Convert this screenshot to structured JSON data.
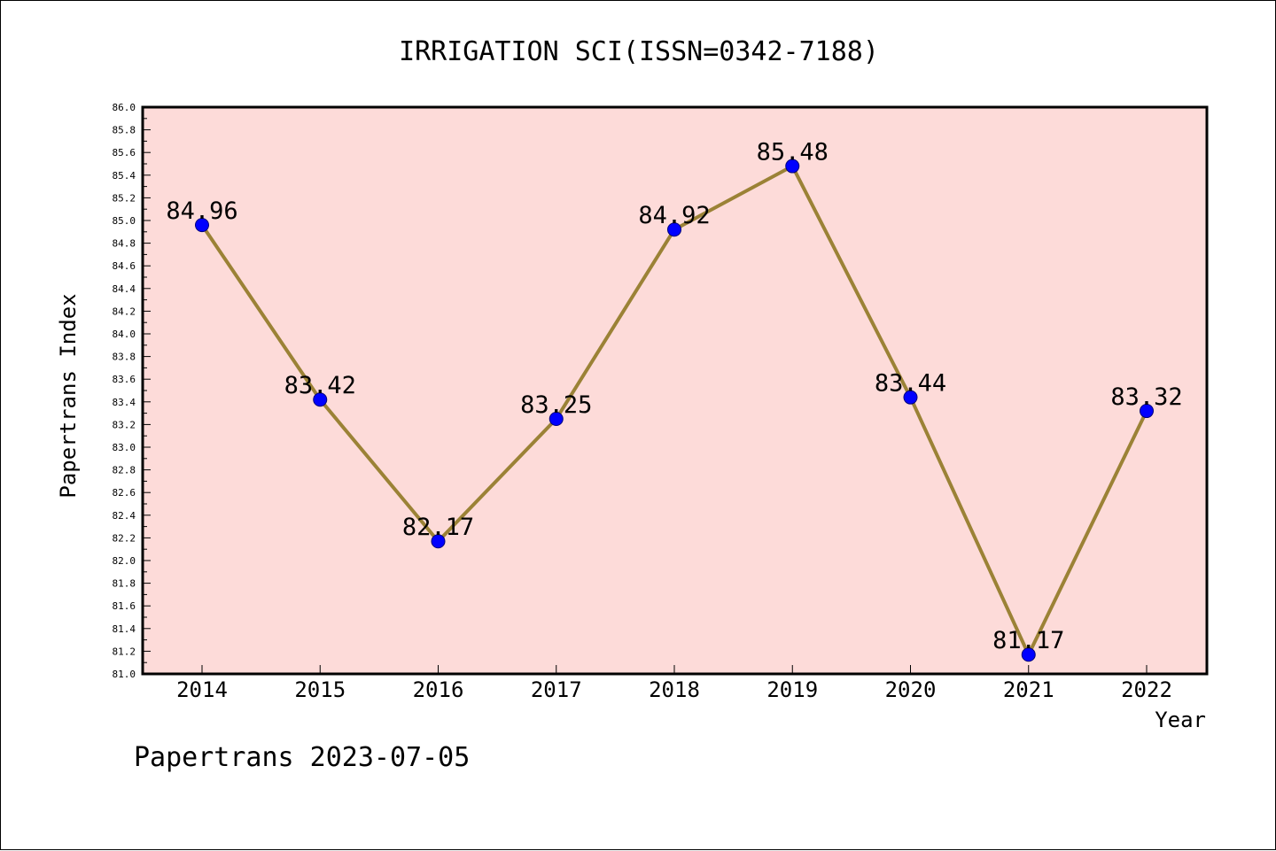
{
  "chart_data": {
    "type": "line",
    "title": "IRRIGATION SCI(ISSN=0342-7188)",
    "xlabel": "Year",
    "ylabel": "Papertrans Index",
    "categories": [
      "2014",
      "2015",
      "2016",
      "2017",
      "2018",
      "2019",
      "2020",
      "2021",
      "2022"
    ],
    "series": [
      {
        "values": [
          84.96,
          83.42,
          82.17,
          83.25,
          84.92,
          85.48,
          83.44,
          81.17,
          83.32
        ],
        "labels": [
          "84.96",
          "83.42",
          "82.17",
          "83.25",
          "84.92",
          "85.48",
          "83.44",
          "81.17",
          "83.32"
        ]
      }
    ],
    "ylim": [
      81.0,
      86.0
    ],
    "ytick_step": 0.2,
    "ytick_labels": [
      "81.0",
      "81.2",
      "81.4",
      "81.6",
      "81.8",
      "82.0",
      "82.2",
      "82.4",
      "82.6",
      "82.8",
      "83.0",
      "83.2",
      "83.4",
      "83.6",
      "83.8",
      "84.0",
      "84.2",
      "84.4",
      "84.6",
      "84.8",
      "85.0",
      "85.2",
      "85.4",
      "85.6",
      "85.8",
      "86.0"
    ],
    "grid": false,
    "legend": "none",
    "colors": {
      "plot_background": "#fddbd9",
      "line": "#9b8236",
      "marker_fill": "#0000ff",
      "marker_stroke": "#00007a"
    }
  },
  "footer": {
    "text": "Papertrans 2023-07-05"
  }
}
